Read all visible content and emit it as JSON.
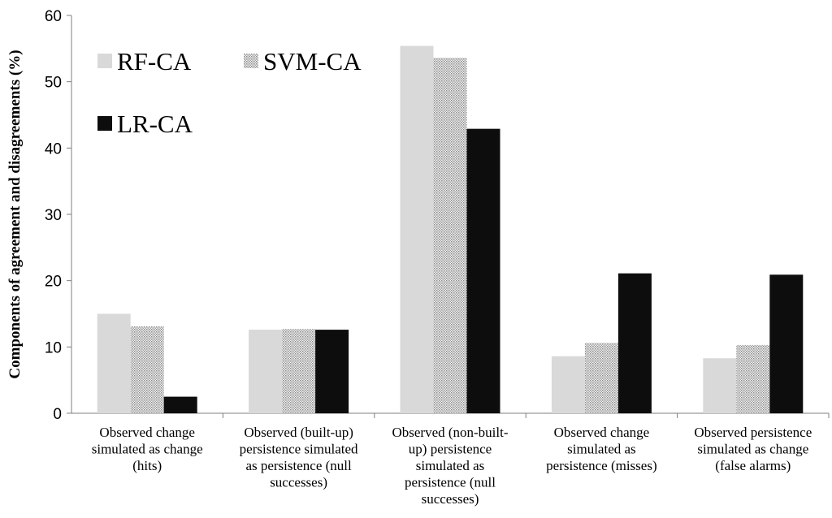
{
  "chart_data": {
    "type": "bar",
    "title": "",
    "xlabel": "",
    "ylabel": "Components of agreement and disagreements (%)",
    "ylim": [
      0,
      60
    ],
    "yticks": [
      0,
      10,
      20,
      30,
      40,
      50,
      60
    ],
    "grid": false,
    "legend_placement": "top-left",
    "categories": [
      [
        "Observed change",
        "simulated as change",
        "(hits)"
      ],
      [
        "Observed (built-up)",
        "persistence simulated",
        "as persistence (null",
        "successes)"
      ],
      [
        "Observed (non-built-",
        "up) persistence",
        "simulated as",
        "persistence (null",
        "successes)"
      ],
      [
        "Observed change",
        "simulated as",
        "persistence (misses)"
      ],
      [
        "Observed persistence",
        "simulated as change",
        "(false alarms)"
      ]
    ],
    "series": [
      {
        "name": "RF-CA",
        "color": "#d9d9d9",
        "pattern": "solid",
        "values": [
          15.0,
          12.6,
          55.4,
          8.6,
          8.3
        ]
      },
      {
        "name": "SVM-CA",
        "color": "#bfbfbf",
        "pattern": "dotted",
        "values": [
          13.1,
          12.7,
          53.6,
          10.6,
          10.3
        ]
      },
      {
        "name": "LR-CA",
        "color": "#0d0d0d",
        "pattern": "solid",
        "values": [
          2.5,
          12.6,
          42.9,
          21.1,
          20.9
        ]
      }
    ]
  }
}
